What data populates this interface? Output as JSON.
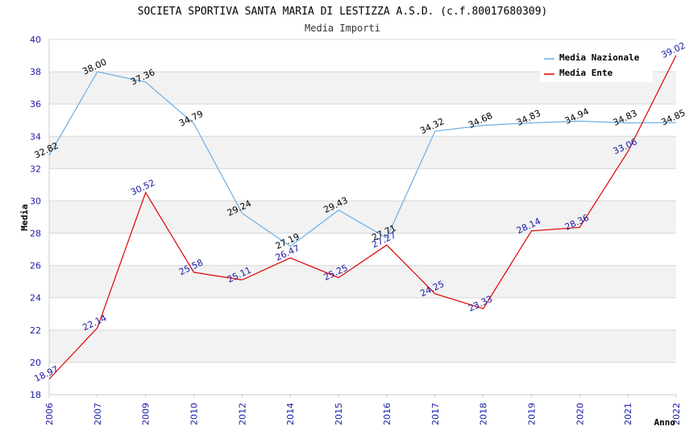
{
  "chart_data": {
    "type": "line",
    "title": "SOCIETA SPORTIVA SANTA MARIA DI LESTIZZA A.S.D. (c.f.80017680309)",
    "subtitle": "Media Importi",
    "xlabel": "Anno",
    "ylabel": "Media",
    "ylim": [
      18,
      40
    ],
    "yticks": [
      "18",
      "20",
      "22",
      "24",
      "26",
      "28",
      "30",
      "32",
      "34",
      "36",
      "38",
      "40"
    ],
    "categories": [
      "2006",
      "2007",
      "2009",
      "2010",
      "2012",
      "2014",
      "2015",
      "2016",
      "2017",
      "2018",
      "2019",
      "2020",
      "2021",
      "2022"
    ],
    "legend_position": "top-right",
    "series": [
      {
        "name": "Media Nazionale",
        "color": "#6aaee8",
        "label_color": "#000000",
        "values": [
          32.82,
          38.0,
          37.36,
          34.79,
          29.24,
          27.19,
          29.43,
          27.71,
          34.32,
          34.68,
          34.83,
          34.94,
          34.83,
          34.85
        ],
        "labels": [
          "32.82",
          "38.00",
          "37.36",
          "34.79",
          "29.24",
          "27.19",
          "29.43",
          "27.71",
          "34.32",
          "34.68",
          "34.83",
          "34.94",
          "34.83",
          "34.85"
        ]
      },
      {
        "name": "Media Ente",
        "color": "#e00000",
        "label_color": "#1a1aa6",
        "values": [
          18.97,
          22.14,
          30.52,
          25.58,
          25.11,
          26.47,
          25.25,
          27.27,
          24.25,
          23.33,
          28.14,
          28.36,
          33.06,
          39.02
        ],
        "labels": [
          "18.97",
          "22.14",
          "30.52",
          "25.58",
          "25.11",
          "26.47",
          "25.25",
          "27.27",
          "24.25",
          "23.33",
          "28.14",
          "28.36",
          "33.06",
          "39.02"
        ]
      }
    ],
    "colors": {
      "band": "#f2f2f2",
      "grid": "#d8d8d8",
      "axis": "#cccccc",
      "tick_text": "#1a1aa6"
    }
  }
}
